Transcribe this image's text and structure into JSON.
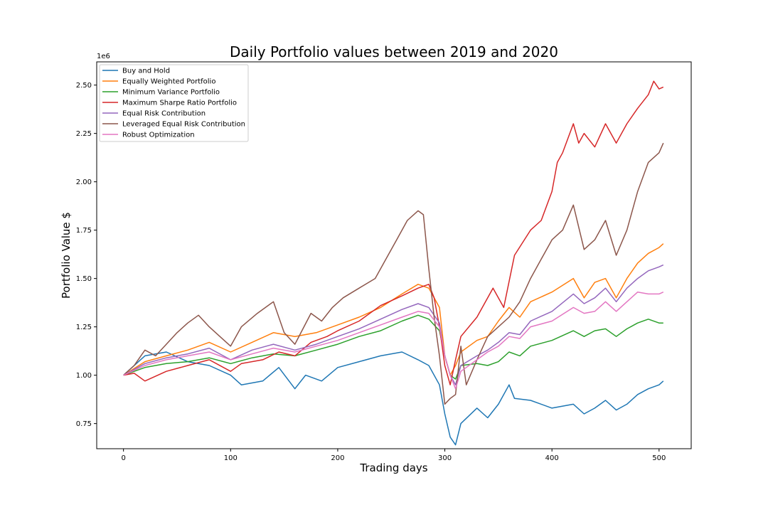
{
  "chart_data": {
    "type": "line",
    "title": "Daily Portfolio values between 2019 and 2020",
    "xlabel": "Trading days",
    "ylabel": "Portfolio Value $",
    "y_offset_text": "1e6",
    "xlim": [
      -25,
      530
    ],
    "ylim": [
      0.62,
      2.62
    ],
    "x_ticks": [
      0,
      100,
      200,
      300,
      400,
      500
    ],
    "x_tick_labels": [
      "0",
      "100",
      "200",
      "300",
      "400",
      "500"
    ],
    "y_ticks": [
      0.75,
      1.0,
      1.25,
      1.5,
      1.75,
      2.0,
      2.25,
      2.5
    ],
    "y_tick_labels": [
      "0.75",
      "1.00",
      "1.25",
      "1.50",
      "1.75",
      "2.00",
      "2.25",
      "2.50"
    ],
    "grid": false,
    "legend_position": "top-left",
    "series": [
      {
        "name": "Buy and Hold",
        "color": "#1f77b4",
        "x": [
          0,
          20,
          40,
          60,
          80,
          100,
          110,
          130,
          145,
          160,
          170,
          185,
          200,
          220,
          240,
          260,
          275,
          285,
          295,
          300,
          305,
          310,
          315,
          330,
          340,
          350,
          360,
          365,
          380,
          400,
          420,
          430,
          440,
          450,
          460,
          470,
          480,
          490,
          500,
          504
        ],
        "y": [
          1.0,
          1.1,
          1.12,
          1.07,
          1.05,
          1.0,
          0.95,
          0.97,
          1.04,
          0.93,
          1.0,
          0.97,
          1.04,
          1.07,
          1.1,
          1.12,
          1.08,
          1.05,
          0.95,
          0.8,
          0.68,
          0.64,
          0.75,
          0.83,
          0.78,
          0.85,
          0.95,
          0.88,
          0.87,
          0.83,
          0.85,
          0.8,
          0.83,
          0.87,
          0.82,
          0.85,
          0.9,
          0.93,
          0.95,
          0.97
        ]
      },
      {
        "name": "Equally Weighted Portfolio",
        "color": "#ff7f0e",
        "x": [
          0,
          20,
          40,
          60,
          80,
          100,
          120,
          140,
          160,
          180,
          200,
          220,
          240,
          260,
          275,
          285,
          295,
          300,
          305,
          310,
          315,
          330,
          340,
          350,
          360,
          370,
          380,
          400,
          420,
          430,
          440,
          450,
          460,
          470,
          480,
          490,
          500,
          504
        ],
        "y": [
          1.0,
          1.07,
          1.1,
          1.13,
          1.17,
          1.12,
          1.17,
          1.22,
          1.2,
          1.22,
          1.26,
          1.3,
          1.35,
          1.42,
          1.47,
          1.45,
          1.35,
          1.1,
          1.0,
          1.05,
          1.12,
          1.18,
          1.2,
          1.28,
          1.35,
          1.3,
          1.38,
          1.43,
          1.5,
          1.4,
          1.48,
          1.5,
          1.4,
          1.5,
          1.58,
          1.63,
          1.66,
          1.68
        ]
      },
      {
        "name": "Minimum Variance Portfolio",
        "color": "#2ca02c",
        "x": [
          0,
          20,
          40,
          60,
          80,
          100,
          120,
          140,
          160,
          180,
          200,
          220,
          240,
          260,
          275,
          285,
          295,
          300,
          305,
          310,
          315,
          330,
          340,
          350,
          360,
          370,
          380,
          400,
          420,
          430,
          440,
          450,
          460,
          470,
          480,
          490,
          500,
          504
        ],
        "y": [
          1.0,
          1.04,
          1.06,
          1.07,
          1.09,
          1.06,
          1.09,
          1.11,
          1.1,
          1.13,
          1.16,
          1.2,
          1.23,
          1.28,
          1.31,
          1.29,
          1.23,
          1.1,
          1.0,
          0.98,
          1.05,
          1.06,
          1.05,
          1.07,
          1.12,
          1.1,
          1.15,
          1.18,
          1.23,
          1.2,
          1.23,
          1.24,
          1.2,
          1.24,
          1.27,
          1.29,
          1.27,
          1.27
        ]
      },
      {
        "name": "Maximum Sharpe Ratio Portfolio",
        "color": "#d62728",
        "x": [
          0,
          10,
          20,
          40,
          60,
          80,
          100,
          110,
          130,
          145,
          160,
          175,
          190,
          200,
          220,
          240,
          260,
          275,
          285,
          290,
          295,
          300,
          305,
          310,
          315,
          330,
          345,
          355,
          365,
          380,
          390,
          400,
          405,
          410,
          420,
          425,
          430,
          440,
          450,
          460,
          470,
          480,
          490,
          495,
          500,
          504
        ],
        "y": [
          1.0,
          1.01,
          0.97,
          1.02,
          1.05,
          1.08,
          1.02,
          1.06,
          1.08,
          1.12,
          1.1,
          1.17,
          1.2,
          1.23,
          1.28,
          1.36,
          1.41,
          1.45,
          1.47,
          1.4,
          1.25,
          1.05,
          0.95,
          1.08,
          1.2,
          1.3,
          1.45,
          1.35,
          1.62,
          1.75,
          1.8,
          1.95,
          2.1,
          2.15,
          2.3,
          2.2,
          2.25,
          2.18,
          2.3,
          2.2,
          2.3,
          2.38,
          2.45,
          2.52,
          2.48,
          2.49
        ]
      },
      {
        "name": "Equal Risk Contribution",
        "color": "#9467bd",
        "x": [
          0,
          20,
          40,
          60,
          80,
          100,
          120,
          140,
          160,
          180,
          200,
          220,
          240,
          260,
          275,
          285,
          295,
          300,
          305,
          310,
          315,
          330,
          340,
          350,
          360,
          370,
          380,
          400,
          420,
          430,
          440,
          450,
          460,
          470,
          480,
          490,
          500,
          504
        ],
        "y": [
          1.0,
          1.06,
          1.09,
          1.11,
          1.14,
          1.08,
          1.13,
          1.16,
          1.13,
          1.16,
          1.2,
          1.24,
          1.29,
          1.34,
          1.37,
          1.35,
          1.27,
          1.1,
          1.0,
          0.95,
          1.05,
          1.1,
          1.13,
          1.17,
          1.22,
          1.21,
          1.28,
          1.33,
          1.42,
          1.37,
          1.4,
          1.45,
          1.38,
          1.45,
          1.5,
          1.54,
          1.56,
          1.57
        ]
      },
      {
        "name": "Leveraged Equal Risk Contribution",
        "color": "#8c564b",
        "x": [
          0,
          10,
          20,
          30,
          40,
          50,
          60,
          70,
          80,
          90,
          100,
          110,
          125,
          140,
          150,
          160,
          175,
          185,
          195,
          205,
          220,
          235,
          245,
          255,
          265,
          275,
          280,
          285,
          290,
          295,
          300,
          305,
          310,
          315,
          320,
          330,
          340,
          350,
          360,
          370,
          380,
          390,
          400,
          410,
          420,
          430,
          440,
          450,
          460,
          470,
          480,
          490,
          500,
          504
        ],
        "y": [
          1.0,
          1.05,
          1.13,
          1.1,
          1.16,
          1.22,
          1.27,
          1.31,
          1.25,
          1.2,
          1.15,
          1.25,
          1.32,
          1.38,
          1.22,
          1.16,
          1.32,
          1.28,
          1.35,
          1.4,
          1.45,
          1.5,
          1.6,
          1.7,
          1.8,
          1.85,
          1.83,
          1.55,
          1.3,
          1.1,
          0.85,
          0.88,
          0.9,
          1.15,
          0.95,
          1.08,
          1.2,
          1.25,
          1.3,
          1.38,
          1.5,
          1.6,
          1.7,
          1.75,
          1.88,
          1.65,
          1.7,
          1.8,
          1.62,
          1.75,
          1.95,
          2.1,
          2.15,
          2.2
        ]
      },
      {
        "name": "Robust Optimization",
        "color": "#e377c2",
        "x": [
          0,
          20,
          40,
          60,
          80,
          100,
          120,
          140,
          160,
          180,
          200,
          220,
          240,
          260,
          275,
          285,
          295,
          300,
          305,
          310,
          315,
          330,
          340,
          350,
          360,
          370,
          380,
          400,
          420,
          430,
          440,
          450,
          460,
          470,
          480,
          490,
          500,
          504
        ],
        "y": [
          1.0,
          1.05,
          1.08,
          1.1,
          1.12,
          1.08,
          1.11,
          1.14,
          1.12,
          1.15,
          1.18,
          1.22,
          1.26,
          1.3,
          1.33,
          1.32,
          1.25,
          1.1,
          1.0,
          0.93,
          1.02,
          1.08,
          1.12,
          1.15,
          1.2,
          1.19,
          1.25,
          1.28,
          1.35,
          1.32,
          1.33,
          1.38,
          1.33,
          1.38,
          1.43,
          1.42,
          1.42,
          1.43
        ]
      }
    ]
  }
}
